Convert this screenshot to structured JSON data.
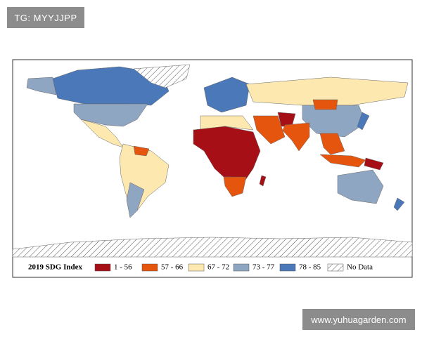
{
  "watermark_top": "TG: MYYJJPP",
  "watermark_bottom": "www.yuhuagarden.com",
  "legend": {
    "title": "2019 SDG Index",
    "items": [
      {
        "label": "1 - 56",
        "color": "#a50f15"
      },
      {
        "label": "57 - 66",
        "color": "#e6550d"
      },
      {
        "label": "67 - 72",
        "color": "#fde9b0"
      },
      {
        "label": "73 - 77",
        "color": "#8ea6c2"
      },
      {
        "label": "78 - 85",
        "color": "#4a78b8"
      },
      {
        "label": "No Data",
        "pattern": "hatch"
      }
    ]
  }
}
